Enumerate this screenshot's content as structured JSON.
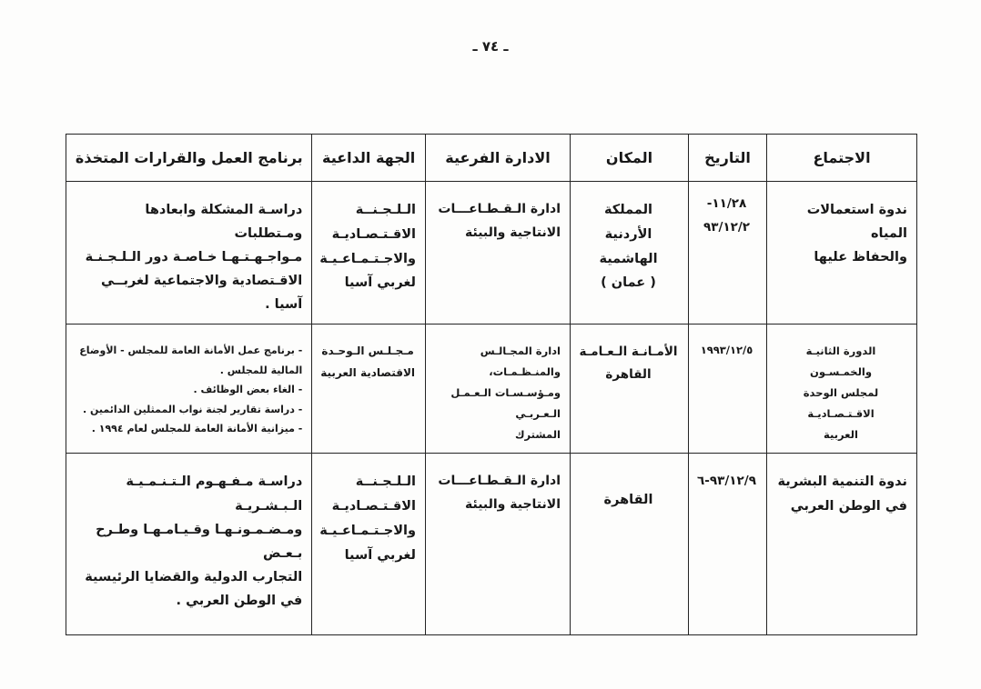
{
  "page": {
    "page_number": "ـ ٧٤ ـ"
  },
  "colors": {
    "paper": "#fdfdfc",
    "ink": "#181818",
    "border": "#242424"
  },
  "table": {
    "headers": [
      "الاجتماع",
      "التاريخ",
      "المكان",
      "الادارة الفرعية",
      "الجهة الداعية",
      "برنامج العمل والقرارات المتخذة"
    ],
    "rows": [
      {
        "meeting": "ندوة استعمالات المياه\nوالحفاظ عليها",
        "date": "-١١/٢٨\n٩٣/١٢/٢",
        "place": "المملكة\nالأردنية الهاشمية\n( عمان )",
        "sub_admin": "ادارة الـقـطـاعـــات\nالانتاجية والبيئة",
        "inviting": "الـلـجـنــة\nالاقـتـصـاديـة\nوالاجـتـمـاعـيـة\nلغربي آسيا",
        "program": "دراسـة المشكلة وابعادها ومـتطلبات\nمـواجـهـتـهـا خـاصـة دور الـلـجـنـة\nالاقـتصادية والاجتماعية لغربــي\nآسيا ."
      },
      {
        "meeting": "الدورة الثانيـة والخمـسـون\nلمجلس الوحدة الاقـتـصـاديـة\nالعربية",
        "date": "١٩٩٣/١٢/٥",
        "place": "الأمـانـة الـعـامـة\nالقاهرة",
        "sub_admin": "ادارة المجـالـس والمنـظـمـات،\nومـؤسـسـات الـعـمـل الـعـربـي\nالمشترك",
        "inviting": "مـجـلـس الـوحـدة\nالاقتصادية العربية",
        "program": "- برنامج عمل الأمانة العامة للمجلس - الأوضاع\nالمالية للمجلس .\n- الغاء بعض الوظائف .\n- دراسة تقارير لجنة نواب الممثلين الدائمين .\n- ميزانية الأمانة العامة للمجلس لعام ١٩٩٤ ."
      },
      {
        "meeting": "ندوة التنمية البشرية\nفي الوطن العربي",
        "date": "٩٣/١٢/٩-٦",
        "place": "القاهرة",
        "sub_admin": "ادارة الـقـطـاعـــات\nالانتاجية والبيئة",
        "inviting": "الـلـجـنــة\nالاقـتـصـاديـة\nوالاجـتـمـاعـيـة\nلغربي آسيا",
        "program": "دراسـة مـفـهـوم الـتـنـمـيـة الـبـشـريـة\nومـضـمـونـهـا وقـيـامـهـا وطـرح بـعـض\nالتجارب الدولية والقضايا الرئيسية\nفي الوطن العربي ."
      }
    ]
  }
}
